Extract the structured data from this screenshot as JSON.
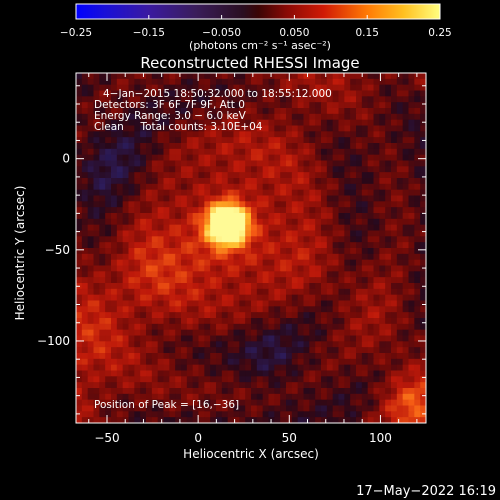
{
  "colorbar": {
    "tick_labels": [
      "−0.25",
      "−0.15",
      "−0.050",
      "0.050",
      "0.15",
      "0.25"
    ],
    "tick_values": [
      -0.25,
      -0.15,
      -0.05,
      0.05,
      0.15,
      0.25
    ],
    "range": [
      -0.25,
      0.25
    ],
    "units_label": "(photons cm⁻² s⁻¹ asec⁻²)"
  },
  "plot": {
    "title": "Reconstructed RHESSI Image",
    "info_lines": [
      "4−Jan−2015 18:50:32.000 to 18:55:12.000",
      "Detectors: 3F 6F 7F 9F, Att 0",
      "Energy Range: 3.0 − 6.0 keV",
      "Clean     Total counts: 3.10E+04"
    ],
    "peak_label": "Position of Peak = [16,−36]",
    "xlabel": "Heliocentric X (arcsec)",
    "ylabel": "Heliocentric Y (arcsec)"
  },
  "footer": {
    "timestamp": "17−May−2022 16:19"
  },
  "chart_data": {
    "type": "heatmap",
    "title": "Reconstructed RHESSI Image",
    "xlabel": "Heliocentric X (arcsec)",
    "ylabel": "Heliocentric Y (arcsec)",
    "xlim": [
      -67,
      125
    ],
    "ylim": [
      -145,
      47
    ],
    "x_ticks": [
      -50,
      0,
      50,
      100
    ],
    "x_tick_labels": [
      "−50",
      "0",
      "50",
      "100"
    ],
    "y_ticks": [
      0,
      -50,
      -100
    ],
    "y_tick_labels": [
      "0",
      "−50",
      "−100"
    ],
    "peak_position": [
      16,
      -36
    ],
    "colorscale_range": [
      -0.25,
      0.25
    ],
    "colors": {
      "background": "#000000",
      "axes": "#ffffff"
    }
  }
}
